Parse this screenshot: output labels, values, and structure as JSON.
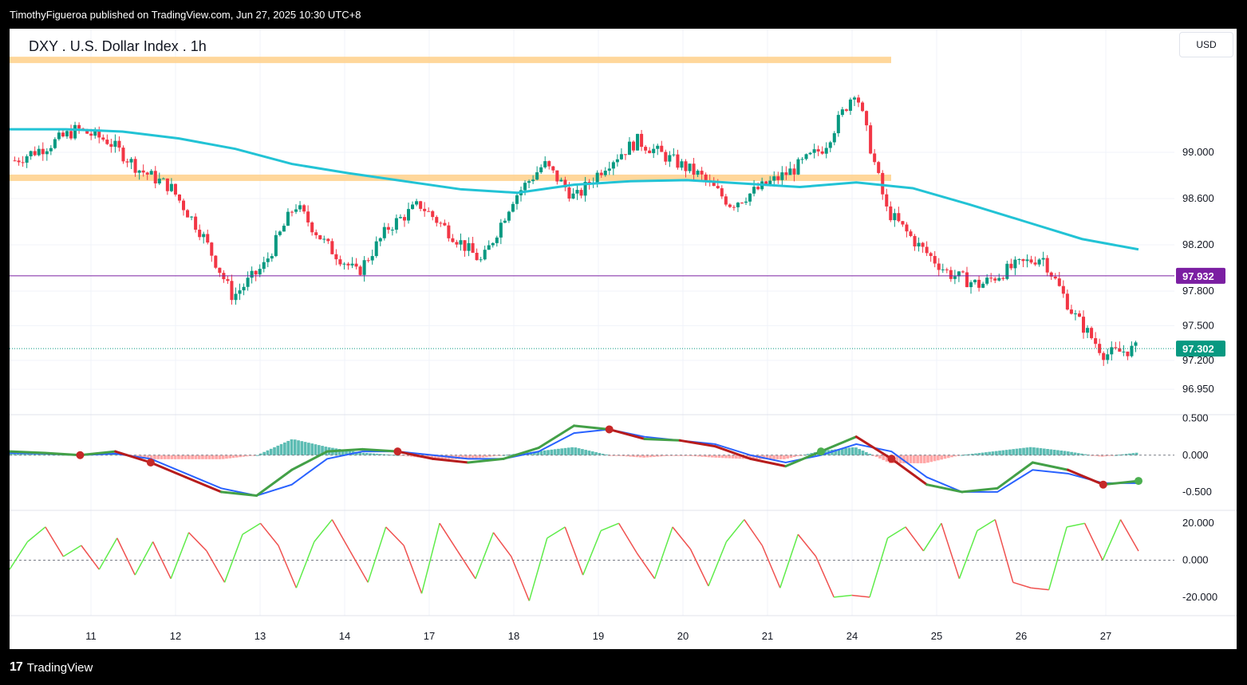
{
  "header": {
    "published": "TimothyFigueroa published on TradingView.com, Jun 27, 2025 10:30 UTC+8"
  },
  "chart": {
    "title": "DXY . U.S. Dollar Index . 1h",
    "currency": "USD"
  },
  "footer": {
    "logo_mark": "17",
    "logo_text": "TradingView"
  },
  "chart_data": [
    {
      "type": "candlestick",
      "title": "DXY . U.S. Dollar Index . 1h",
      "price_ticks": [
        "99.000",
        "98.600",
        "98.200",
        "97.800",
        "97.500",
        "97.200",
        "96.950"
      ],
      "price_tick_values": [
        99.0,
        98.6,
        98.2,
        97.8,
        97.5,
        97.2,
        96.95
      ],
      "x_tick_labels": [
        "11",
        "12",
        "13",
        "14",
        "17",
        "18",
        "19",
        "20",
        "21",
        "24",
        "25",
        "26",
        "27"
      ],
      "ylim": [
        96.73,
        100.07
      ],
      "resistance_zones": [
        99.8,
        98.78
      ],
      "horizontal_line": {
        "value": 97.932,
        "label": "97.932",
        "color": "#7b1fa2"
      },
      "last_price": {
        "value": 97.302,
        "label": "97.302",
        "color": "#089981"
      },
      "moving_average": {
        "color": "#22c3d5",
        "values": [
          99.2,
          99.2,
          99.18,
          99.12,
          99.03,
          98.9,
          98.82,
          98.75,
          98.68,
          98.65,
          98.72,
          98.75,
          98.76,
          98.73,
          98.7,
          98.74,
          98.69,
          98.55,
          98.4,
          98.25,
          98.16
        ]
      },
      "close_path": [
        98.93,
        99.05,
        99.2,
        99.1,
        98.85,
        98.7,
        98.3,
        97.75,
        98.02,
        98.55,
        98.2,
        97.95,
        98.35,
        98.55,
        98.3,
        98.05,
        98.6,
        98.9,
        98.6,
        98.9,
        99.1,
        98.95,
        98.8,
        98.55,
        98.7,
        98.85,
        99.05,
        99.55,
        98.5,
        98.2,
        97.95,
        97.85,
        98.0,
        98.1,
        97.6,
        97.25,
        97.3
      ]
    },
    {
      "type": "line",
      "name": "oscillator-1",
      "y_ticks": [
        "0.500",
        "0.000",
        "-0.500"
      ],
      "y_tick_values": [
        0.5,
        0.0,
        -0.5
      ],
      "ylim": [
        -0.75,
        0.5
      ],
      "fast_line_color": "#43a047",
      "slow_line_color": "#2962ff",
      "fast_path": [
        0.05,
        0.03,
        0.0,
        0.05,
        -0.1,
        -0.3,
        -0.5,
        -0.55,
        -0.2,
        0.05,
        0.08,
        0.05,
        -0.05,
        -0.1,
        -0.05,
        0.1,
        0.4,
        0.35,
        0.22,
        0.2,
        0.12,
        -0.05,
        -0.15,
        0.05,
        0.25,
        -0.05,
        -0.4,
        -0.5,
        -0.45,
        -0.1,
        -0.2,
        -0.4,
        -0.35
      ],
      "slow_path": [
        0.03,
        0.02,
        0.0,
        0.02,
        -0.05,
        -0.25,
        -0.45,
        -0.55,
        -0.4,
        -0.05,
        0.05,
        0.05,
        0.0,
        -0.05,
        -0.05,
        0.05,
        0.3,
        0.35,
        0.25,
        0.2,
        0.15,
        0.0,
        -0.1,
        0.0,
        0.15,
        0.05,
        -0.3,
        -0.5,
        -0.5,
        -0.2,
        -0.25,
        -0.38,
        -0.38
      ]
    },
    {
      "type": "line",
      "name": "oscillator-2",
      "y_ticks": [
        "20.000",
        "0.000",
        "-20.000"
      ],
      "y_tick_values": [
        20.0,
        0.0,
        -20.0
      ],
      "ylim": [
        -30,
        27
      ],
      "up_color": "#5fec4a",
      "down_color": "#f0514f",
      "values": [
        -5,
        10,
        18,
        2,
        8,
        -5,
        12,
        -8,
        10,
        -10,
        15,
        5,
        -12,
        14,
        20,
        8,
        -15,
        10,
        22,
        5,
        -12,
        18,
        8,
        -18,
        20,
        5,
        -10,
        15,
        2,
        -22,
        12,
        18,
        -8,
        16,
        20,
        4,
        -10,
        18,
        6,
        -14,
        10,
        22,
        8,
        -15,
        14,
        2,
        -20,
        -19,
        -20,
        12,
        18,
        5,
        20,
        -10,
        16,
        22,
        -12,
        -15,
        -16,
        18,
        20,
        0,
        22,
        5
      ]
    }
  ]
}
